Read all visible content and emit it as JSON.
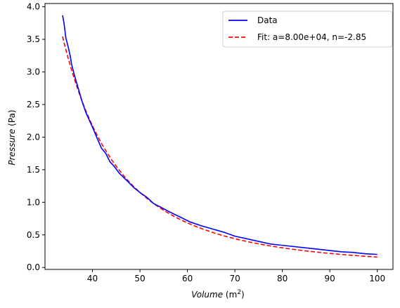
{
  "chart_data": {
    "type": "line",
    "xlabel": {
      "name": "Volume",
      "unit": "m",
      "unit_sup": "2"
    },
    "ylabel": {
      "name": "Pressure",
      "unit": "(Pa)"
    },
    "xlim": [
      30.0,
      103.3
    ],
    "ylim": [
      -0.03,
      4.05
    ],
    "xticks": [
      40,
      50,
      60,
      70,
      80,
      90,
      100
    ],
    "yticks": [
      0.0,
      0.5,
      1.0,
      1.5,
      2.0,
      2.5,
      3.0,
      3.5,
      4.0
    ],
    "ytick_labels": [
      "0.0",
      "0.5",
      "1.0",
      "1.5",
      "2.0",
      "2.5",
      "3.0",
      "3.5",
      "4.0"
    ],
    "legend": {
      "position": "top-right",
      "entries": [
        {
          "label": "Data",
          "color": "#0000ff",
          "style": "solid"
        },
        {
          "label": "Fit: a=8.00e+04, n=-2.85",
          "color": "#ff0000",
          "style": "dashed"
        }
      ]
    },
    "series": [
      {
        "name": "Data",
        "color": "#0000ff",
        "x": [
          33.7,
          34.0,
          34.4,
          34.9,
          35.3,
          35.6,
          36.2,
          37.0,
          37.8,
          38.6,
          39.4,
          40.2,
          41.0,
          41.9,
          42.8,
          43.7,
          44.6,
          45.6,
          46.6,
          47.7,
          48.8,
          50.0,
          51.4,
          52.9,
          54.5,
          56.3,
          58.3,
          60.5,
          62.9,
          65.3,
          67.7,
          70.0,
          72.5,
          75.0,
          77.5,
          80.0,
          82.5,
          85.0,
          87.5,
          90.0,
          92.5,
          95.0,
          97.5,
          100.0
        ],
        "y": [
          3.87,
          3.75,
          3.52,
          3.38,
          3.25,
          3.12,
          2.95,
          2.75,
          2.55,
          2.38,
          2.25,
          2.12,
          1.98,
          1.83,
          1.75,
          1.62,
          1.55,
          1.45,
          1.38,
          1.3,
          1.22,
          1.15,
          1.08,
          0.98,
          0.92,
          0.85,
          0.78,
          0.7,
          0.64,
          0.59,
          0.54,
          0.48,
          0.44,
          0.4,
          0.36,
          0.34,
          0.32,
          0.3,
          0.28,
          0.26,
          0.24,
          0.23,
          0.21,
          0.2
        ]
      },
      {
        "name": "Fit: a=8.00e+04, n=-2.85",
        "color": "#ff0000",
        "a": 80000,
        "n": -2.85,
        "x_range": [
          33.7,
          100.0
        ]
      }
    ]
  }
}
